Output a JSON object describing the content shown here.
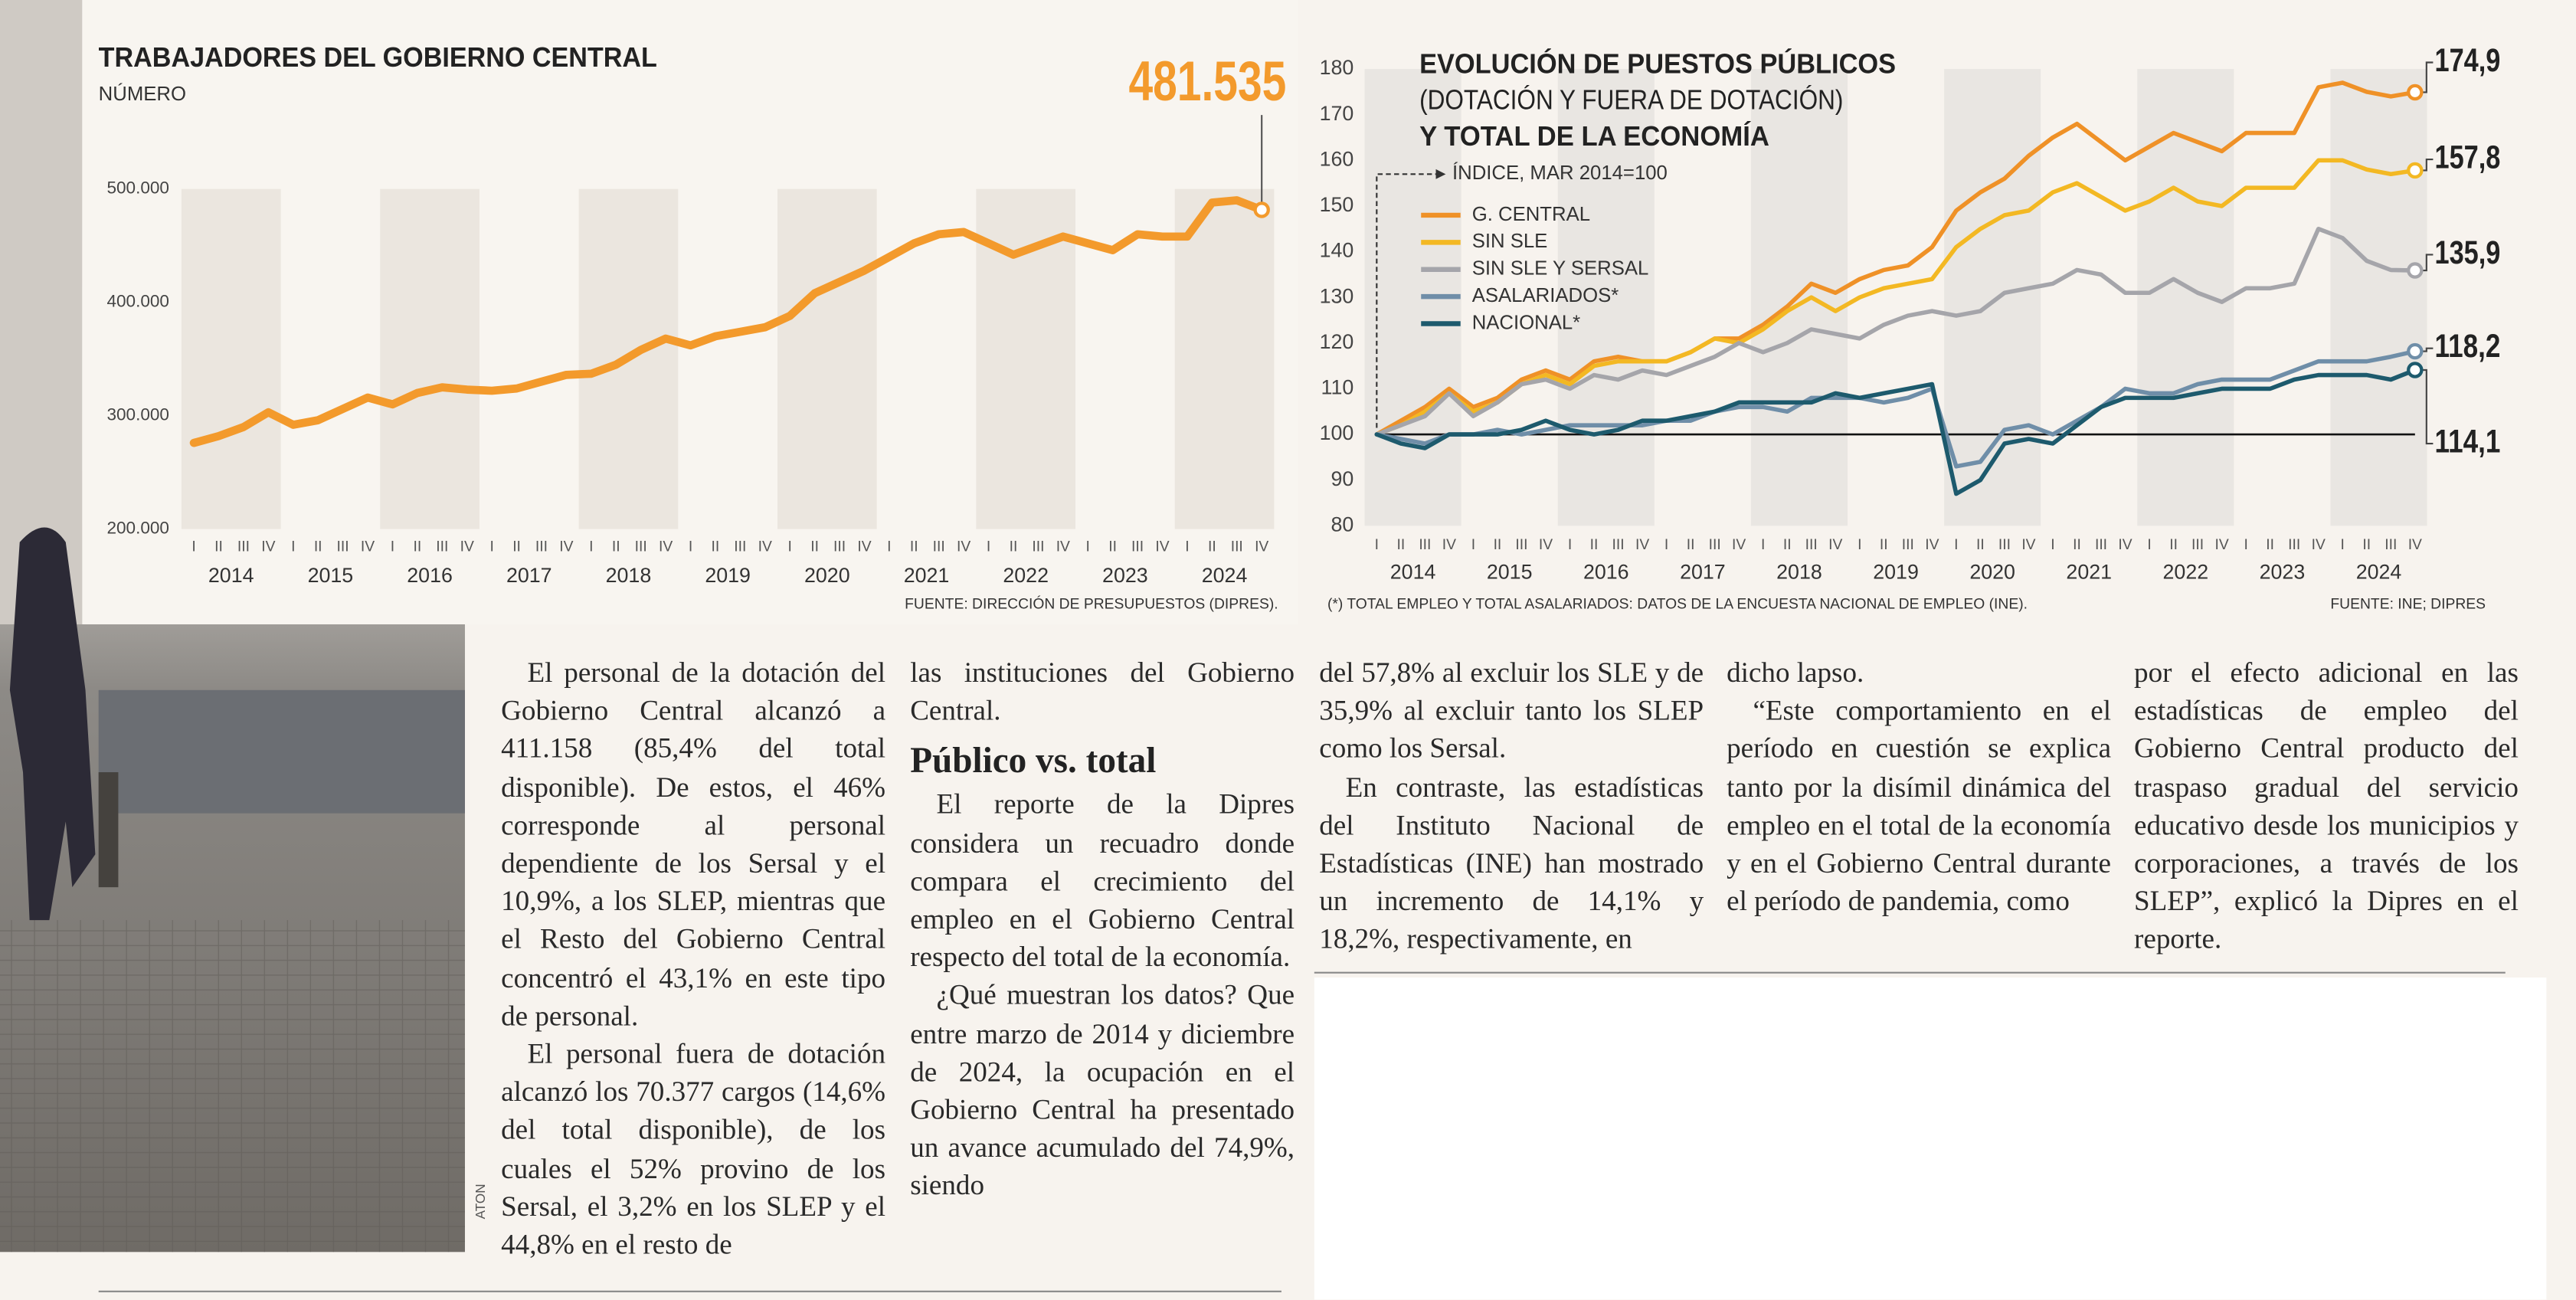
{
  "chart_data": [
    {
      "type": "line",
      "title": "TRABAJADORES DEL GOBIERNO CENTRAL",
      "y_label": "NÚMERO",
      "categories": [
        "I",
        "II",
        "III",
        "IV",
        "I",
        "II",
        "III",
        "IV",
        "I",
        "II",
        "III",
        "IV",
        "I",
        "II",
        "III",
        "IV",
        "I",
        "II",
        "III",
        "IV",
        "I",
        "II",
        "III",
        "IV",
        "I",
        "II",
        "III",
        "IV",
        "I",
        "II",
        "III",
        "IV",
        "I",
        "II",
        "III",
        "IV",
        "I",
        "II",
        "III",
        "IV",
        "I",
        "II",
        "III",
        "IV"
      ],
      "years": [
        "2014",
        "2015",
        "2016",
        "2017",
        "2018",
        "2019",
        "2020",
        "2021",
        "2022",
        "2023",
        "2024"
      ],
      "values": [
        276000,
        282000,
        290000,
        303000,
        292000,
        296000,
        306000,
        316000,
        310000,
        320000,
        325000,
        323000,
        322000,
        324000,
        330000,
        336000,
        337000,
        345000,
        358000,
        368000,
        362000,
        370000,
        374000,
        378000,
        388000,
        408000,
        418000,
        428000,
        440000,
        452000,
        460000,
        462000,
        452000,
        442000,
        450000,
        458000,
        452000,
        446000,
        460000,
        458000,
        458000,
        488000,
        490000,
        481535
      ],
      "value_labels": [
        null,
        null,
        null,
        null,
        null,
        null,
        null,
        null,
        null,
        null,
        null,
        null,
        null,
        null,
        null,
        null,
        null,
        null,
        null,
        null,
        null,
        null,
        null,
        null,
        null,
        null,
        null,
        null,
        null,
        null,
        null,
        null,
        null,
        null,
        null,
        null,
        null,
        null,
        null,
        null,
        null,
        null,
        null,
        "481.535"
      ],
      "color": "#f39a2c",
      "ylim": [
        200000,
        500000
      ],
      "yticks": [
        {
          "value": 500000,
          "label": "500.000"
        },
        {
          "value": 400000,
          "label": "400.000"
        },
        {
          "value": 300000,
          "label": "300.000"
        },
        {
          "value": 200000,
          "label": "200.000"
        }
      ],
      "year_bands": true,
      "source": "FUENTE: DIRECCIÓN DE PRESUPUESTOS (DIPRES)."
    },
    {
      "type": "line",
      "title": [
        "EVOLUCIÓN DE PUESTOS PÚBLICOS",
        "(DOTACIÓN Y FUERA DE DOTACIÓN)",
        "Y TOTAL DE LA ECONOMÍA"
      ],
      "y_label": "ÍNDICE, MAR 2014=100",
      "categories": [
        "I",
        "II",
        "III",
        "IV",
        "I",
        "II",
        "III",
        "IV",
        "I",
        "II",
        "III",
        "IV",
        "I",
        "II",
        "III",
        "IV",
        "I",
        "II",
        "III",
        "IV",
        "I",
        "II",
        "III",
        "IV",
        "I",
        "II",
        "III",
        "IV",
        "I",
        "II",
        "III",
        "IV",
        "I",
        "II",
        "III",
        "IV",
        "I",
        "II",
        "III",
        "IV",
        "I",
        "II",
        "III",
        "IV"
      ],
      "years": [
        "2014",
        "2015",
        "2016",
        "2017",
        "2018",
        "2019",
        "2020",
        "2021",
        "2022",
        "2023",
        "2024"
      ],
      "series": [
        {
          "name": "G. CENTRAL",
          "color": "#ef9127",
          "values": [
            100,
            103,
            106,
            110,
            106,
            108,
            112,
            114,
            112,
            116,
            117,
            116,
            116,
            118,
            121,
            121,
            124,
            128,
            133,
            131,
            134,
            136,
            137,
            141,
            149,
            153,
            156,
            161,
            165,
            168,
            164,
            160,
            163,
            166,
            164,
            162,
            166,
            166,
            166,
            176,
            177,
            175,
            174,
            174.9
          ],
          "value_labels": [
            null,
            null,
            null,
            null,
            null,
            null,
            null,
            null,
            null,
            null,
            null,
            null,
            null,
            null,
            null,
            null,
            null,
            null,
            null,
            null,
            null,
            null,
            null,
            null,
            null,
            null,
            null,
            null,
            null,
            null,
            null,
            null,
            null,
            null,
            null,
            null,
            null,
            null,
            null,
            null,
            null,
            null,
            null,
            "174,9"
          ]
        },
        {
          "name": "SIN SLE",
          "color": "#f3b823",
          "values": [
            100,
            102,
            105,
            109,
            105,
            107,
            111,
            113,
            111,
            115,
            116,
            116,
            116,
            118,
            121,
            120,
            123,
            127,
            130,
            127,
            130,
            132,
            133,
            134,
            141,
            145,
            148,
            149,
            153,
            155,
            152,
            149,
            151,
            154,
            151,
            150,
            154,
            154,
            154,
            160,
            160,
            158,
            157,
            157.8
          ],
          "value_labels": [
            null,
            null,
            null,
            null,
            null,
            null,
            null,
            null,
            null,
            null,
            null,
            null,
            null,
            null,
            null,
            null,
            null,
            null,
            null,
            null,
            null,
            null,
            null,
            null,
            null,
            null,
            null,
            null,
            null,
            null,
            null,
            null,
            null,
            null,
            null,
            null,
            null,
            null,
            null,
            null,
            null,
            null,
            null,
            "157,8"
          ]
        },
        {
          "name": "SIN SLE Y SERSAL",
          "color": "#a5a5aa",
          "values": [
            100,
            102,
            104,
            109,
            104,
            107,
            111,
            112,
            110,
            113,
            112,
            114,
            113,
            115,
            117,
            120,
            118,
            120,
            123,
            122,
            121,
            124,
            126,
            127,
            126,
            127,
            131,
            132,
            133,
            136,
            135,
            131,
            131,
            134,
            131,
            129,
            132,
            132,
            133,
            145,
            143,
            138,
            136,
            135.9
          ],
          "value_labels": [
            null,
            null,
            null,
            null,
            null,
            null,
            null,
            null,
            null,
            null,
            null,
            null,
            null,
            null,
            null,
            null,
            null,
            null,
            null,
            null,
            null,
            null,
            null,
            null,
            null,
            null,
            null,
            null,
            null,
            null,
            null,
            null,
            null,
            null,
            null,
            null,
            null,
            null,
            null,
            null,
            null,
            null,
            null,
            "135,9"
          ]
        },
        {
          "name": "ASALARIADOS*",
          "color": "#6f8ea8",
          "values": [
            100,
            99,
            98,
            100,
            100,
            101,
            100,
            101,
            102,
            102,
            102,
            102,
            103,
            103,
            105,
            106,
            106,
            105,
            108,
            108,
            108,
            107,
            108,
            110,
            93,
            94,
            101,
            102,
            100,
            103,
            106,
            110,
            109,
            109,
            111,
            112,
            112,
            112,
            114,
            116,
            116,
            116,
            117,
            118.2
          ],
          "value_labels": [
            null,
            null,
            null,
            null,
            null,
            null,
            null,
            null,
            null,
            null,
            null,
            null,
            null,
            null,
            null,
            null,
            null,
            null,
            null,
            null,
            null,
            null,
            null,
            null,
            null,
            null,
            null,
            null,
            null,
            null,
            null,
            null,
            null,
            null,
            null,
            null,
            null,
            null,
            null,
            null,
            null,
            null,
            null,
            "118,2"
          ]
        },
        {
          "name": "NACIONAL*",
          "color": "#1d5a6d",
          "values": [
            100,
            98,
            97,
            100,
            100,
            100,
            101,
            103,
            101,
            100,
            101,
            103,
            103,
            104,
            105,
            107,
            107,
            107,
            107,
            109,
            108,
            109,
            110,
            111,
            87,
            90,
            98,
            99,
            98,
            102,
            106,
            108,
            108,
            108,
            109,
            110,
            110,
            110,
            112,
            113,
            113,
            113,
            112,
            114.1
          ],
          "value_labels": [
            null,
            null,
            null,
            null,
            null,
            null,
            null,
            null,
            null,
            null,
            null,
            null,
            null,
            null,
            null,
            null,
            null,
            null,
            null,
            null,
            null,
            null,
            null,
            null,
            null,
            null,
            null,
            null,
            null,
            null,
            null,
            null,
            null,
            null,
            null,
            null,
            null,
            null,
            null,
            null,
            null,
            null,
            null,
            "114,1"
          ]
        }
      ],
      "ylim": [
        80,
        180
      ],
      "yticks": [
        80,
        90,
        100,
        110,
        120,
        130,
        140,
        150,
        160,
        170,
        180
      ],
      "baseline": 100,
      "legend": "upper left",
      "year_bands": true,
      "note": "(*) TOTAL EMPLEO Y TOTAL ASALARIADOS: DATOS DE LA ENCUESTA NACIONAL DE EMPLEO (INE).",
      "source": "FUENTE: INE; DIPRES"
    }
  ],
  "photo": {
    "credit": "ATON"
  },
  "article": {
    "columns": [
      [
        {
          "text": "El personal de la dotación del Gobierno Central alcanzó a 411.158 (85,4% del total disponible). De estos, el 46% corresponde al personal dependiente de los Sersal y el 10,9%, a los SLEP, mientras que el Resto del Gobierno Central concentró el 43,1% en este tipo de personal."
        },
        {
          "text": "El personal fuera de dotación alcanzó los 70.377 cargos (14,6% del total disponible), de los cuales el 52% provino de los Sersal, el 3,2% en los SLEP y el 44,8% en el resto de"
        }
      ],
      [
        {
          "text": "las instituciones del Gobierno Central."
        },
        {
          "heading": "Público vs. total"
        },
        {
          "text": "El reporte de la Dipres considera un recuadro donde compara el crecimiento del empleo en el Gobierno Central respecto del total de la economía."
        },
        {
          "text": "¿Qué muestran los datos? Que entre marzo de 2014 y diciembre de 2024, la ocupación en el Gobierno Central ha presentado un avance acumulado del 74,9%, siendo"
        }
      ],
      [
        {
          "text": "del 57,8% al excluir los SLE y de 35,9% al excluir tanto los SLEP como los Sersal."
        },
        {
          "text": "En contraste, las estadísticas del Instituto Nacional de Estadísticas (INE) han mostrado un incremento de 14,1% y 18,2%, respectivamente, en"
        }
      ],
      [
        {
          "text": "dicho lapso."
        },
        {
          "text": "“Este comportamiento en el período en cuestión se explica tanto por la disímil dinámica del empleo en el total de la economía y en el Gobierno Central durante el período de pandemia, como"
        }
      ],
      [
        {
          "text": "por el efecto adicional en las estadísticas de empleo del Gobierno Central producto del traspaso gradual del servicio educativo desde los municipios y corporaciones, a través de los SLEP”, explicó la Dipres en el reporte."
        }
      ]
    ]
  }
}
